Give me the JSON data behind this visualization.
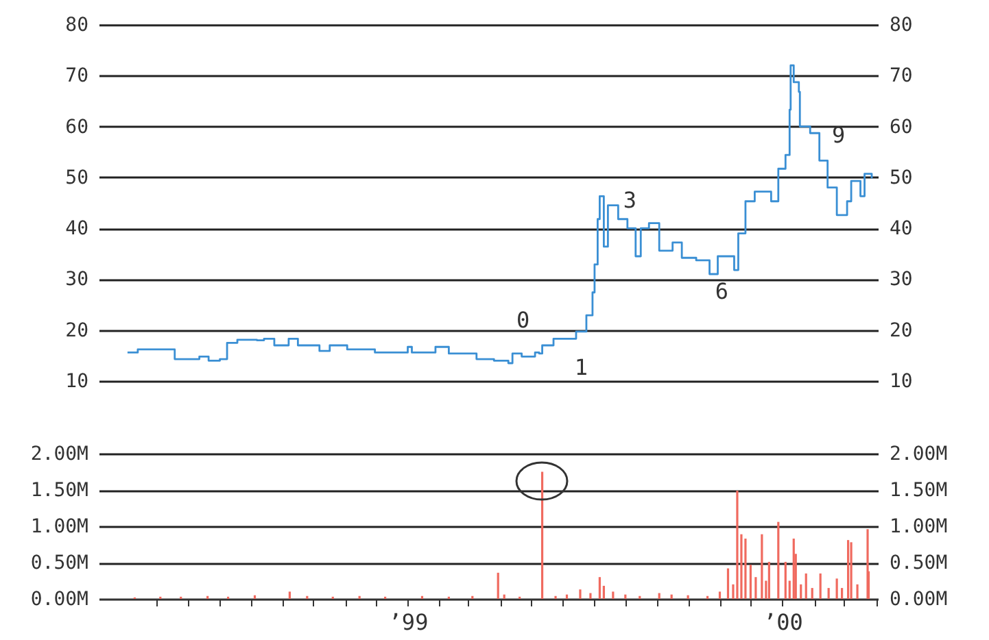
{
  "chart_data": [
    {
      "type": "step",
      "xlim": [
        "1998-03-06",
        "2000-04-03"
      ],
      "ylim": [
        10,
        80
      ],
      "yticks": [
        10,
        20,
        30,
        40,
        50,
        60,
        70,
        80
      ],
      "y2lim": [
        10,
        80
      ],
      "y2ticks": [
        10,
        20,
        30,
        40,
        50,
        60,
        70,
        80
      ],
      "grid": "y",
      "tick_labels": "y",
      "series": [
        {
          "color": "#3a8fd4",
          "x": [
            "1998-04-03",
            "1998-04-13",
            "1998-05-16",
            "1998-05-19",
            "1998-06-12",
            "1998-06-21",
            "1998-07-02",
            "1998-07-09",
            "1998-07-19",
            "1998-08-07",
            "1998-08-14",
            "1998-08-24",
            "1998-09-07",
            "1998-09-16",
            "1998-10-07",
            "1998-10-17",
            "1998-11-03",
            "1998-11-30",
            "1999-01-01",
            "1999-01-05",
            "1999-01-28",
            "1999-02-10",
            "1999-03-09",
            "1999-03-26",
            "1999-04-09",
            "1999-04-13",
            "1999-04-22",
            "1999-05-05",
            "1999-05-09",
            "1999-05-12",
            "1999-05-23",
            "1999-06-10",
            "1999-06-14",
            "1999-06-24",
            "1999-06-30",
            "1999-07-02",
            "1999-07-05",
            "1999-07-07",
            "1999-07-11",
            "1999-07-15",
            "1999-07-25",
            "1999-08-03",
            "1999-08-11",
            "1999-08-16",
            "1999-08-24",
            "1999-09-03",
            "1999-09-16",
            "1999-09-25",
            "1999-10-09",
            "1999-10-22",
            "1999-10-30",
            "1999-11-09",
            "1999-11-15",
            "1999-11-19",
            "1999-11-26",
            "1999-12-05",
            "1999-12-21",
            "1999-12-28",
            "2000-01-04",
            "2000-01-08",
            "2000-01-09",
            "2000-01-12",
            "2000-01-17",
            "2000-01-18",
            "2000-01-28",
            "2000-02-06",
            "2000-02-14",
            "2000-02-23",
            "2000-03-04",
            "2000-03-08",
            "2000-03-17",
            "2000-03-21",
            "2000-03-28"
          ],
          "values": [
            15.6,
            16.2,
            16.2,
            14.3,
            14.8,
            14.0,
            14.3,
            17.5,
            18.1,
            18.0,
            18.3,
            17.0,
            18.3,
            17.0,
            15.9,
            17.0,
            16.2,
            15.6,
            16.7,
            15.6,
            16.7,
            15.4,
            14.3,
            14.0,
            13.5,
            15.4,
            14.8,
            15.6,
            15.4,
            17.0,
            18.3,
            18.3,
            19.7,
            22.9,
            27.4,
            32.9,
            41.8,
            46.3,
            36.4,
            44.5,
            41.8,
            40.0,
            34.5,
            40.0,
            41.0,
            35.6,
            37.2,
            34.2,
            33.7,
            31.0,
            34.5,
            34.5,
            31.8,
            39.0,
            45.3,
            47.2,
            45.3,
            51.7,
            54.4,
            63.3,
            72.0,
            68.7,
            66.8,
            60.0,
            58.7,
            53.3,
            48.0,
            42.6,
            45.3,
            49.3,
            46.3,
            50.7,
            49.8
          ]
        }
      ],
      "annotations": [
        {
          "text": "0",
          "x": "1999-05-12",
          "y": 17.0
        },
        {
          "text": "1",
          "x": "1999-06-11",
          "y": 18.5
        },
        {
          "text": "3",
          "x": "1999-08-16",
          "y": 40.0
        },
        {
          "text": "6",
          "x": "1999-11-11",
          "y": 34.0
        },
        {
          "text": "9",
          "x": "2000-02-06",
          "y": 53.3
        }
      ]
    },
    {
      "type": "bar",
      "xlim": [
        "1998-03-06",
        "2000-04-03"
      ],
      "xticks": [
        {
          "value": "1998-05-01",
          "label": null
        },
        {
          "value": "1998-06-01",
          "label": null
        },
        {
          "value": "1998-07-01",
          "label": null
        },
        {
          "value": "1998-08-01",
          "label": null
        },
        {
          "value": "1998-09-01",
          "label": null
        },
        {
          "value": "1998-10-01",
          "label": null
        },
        {
          "value": "1998-11-01",
          "label": null
        },
        {
          "value": "1998-12-01",
          "label": null
        },
        {
          "value": "1999-01-01",
          "label": "’99"
        },
        {
          "value": "1999-02-01",
          "label": null
        },
        {
          "value": "1999-03-01",
          "label": null
        },
        {
          "value": "1999-04-01",
          "label": null
        },
        {
          "value": "1999-05-01",
          "label": null
        },
        {
          "value": "1999-06-01",
          "label": null
        },
        {
          "value": "1999-07-01",
          "label": null
        },
        {
          "value": "1999-08-01",
          "label": null
        },
        {
          "value": "1999-09-01",
          "label": null
        },
        {
          "value": "1999-10-01",
          "label": null
        },
        {
          "value": "1999-11-01",
          "label": null
        },
        {
          "value": "1999-12-01",
          "label": null
        },
        {
          "value": "2000-01-01",
          "label": "’00"
        },
        {
          "value": "2000-02-01",
          "label": null
        },
        {
          "value": "2000-03-01",
          "label": null
        },
        {
          "value": "2000-04-01",
          "label": null
        }
      ],
      "ylim": [
        0,
        2000000
      ],
      "yticks": [
        {
          "value": 0,
          "label": "0.00M"
        },
        {
          "value": 500000,
          "label": "0.50M"
        },
        {
          "value": 1000000,
          "label": "1.00M"
        },
        {
          "value": 1500000,
          "label": "1.50M"
        },
        {
          "value": 2000000,
          "label": "2.00M"
        }
      ],
      "y2lim": [
        0,
        2000000
      ],
      "y2ticks": [
        {
          "value": 0,
          "label": "0.00M"
        },
        {
          "value": 500000,
          "label": "0.50M"
        },
        {
          "value": 1000000,
          "label": "1.00M"
        },
        {
          "value": 1500000,
          "label": "1.50M"
        },
        {
          "value": 2000000,
          "label": "2.00M"
        }
      ],
      "grid": "y",
      "series": [
        {
          "color": "#f06a5f",
          "x": [
            "1998-04-10",
            "1998-05-05",
            "1998-05-25",
            "1998-06-20",
            "1998-07-10",
            "1998-08-05",
            "1998-09-08",
            "1998-09-25",
            "1998-10-20",
            "1998-11-15",
            "1998-12-10",
            "1999-01-15",
            "1999-02-10",
            "1999-03-05",
            "1999-03-30",
            "1999-04-05",
            "1999-04-20",
            "1999-05-12",
            "1999-05-25",
            "1999-06-05",
            "1999-06-18",
            "1999-06-28",
            "1999-07-07",
            "1999-07-11",
            "1999-07-20",
            "1999-08-01",
            "1999-08-15",
            "1999-09-03",
            "1999-09-15",
            "1999-10-01",
            "1999-10-20",
            "1999-11-01",
            "1999-11-09",
            "1999-11-14",
            "1999-11-18",
            "1999-11-22",
            "1999-11-26",
            "1999-12-01",
            "1999-12-06",
            "1999-12-12",
            "1999-12-16",
            "1999-12-19",
            "1999-12-28",
            "2000-01-04",
            "2000-01-08",
            "2000-01-12",
            "2000-01-14",
            "2000-01-19",
            "2000-01-24",
            "2000-01-30",
            "2000-02-07",
            "2000-02-15",
            "2000-02-23",
            "2000-02-28",
            "2000-03-05",
            "2000-03-08",
            "2000-03-14",
            "2000-03-24",
            "2000-03-25"
          ],
          "values": [
            20000,
            30000,
            30000,
            40000,
            30000,
            50000,
            100000,
            40000,
            30000,
            40000,
            30000,
            40000,
            30000,
            40000,
            360000,
            60000,
            30000,
            1750000,
            40000,
            60000,
            130000,
            80000,
            300000,
            180000,
            100000,
            60000,
            40000,
            80000,
            60000,
            50000,
            40000,
            100000,
            420000,
            200000,
            1490000,
            890000,
            830000,
            470000,
            300000,
            890000,
            250000,
            510000,
            1060000,
            510000,
            250000,
            830000,
            620000,
            200000,
            350000,
            150000,
            350000,
            150000,
            280000,
            150000,
            810000,
            780000,
            200000,
            960000,
            380000
          ]
        }
      ]
    }
  ]
}
